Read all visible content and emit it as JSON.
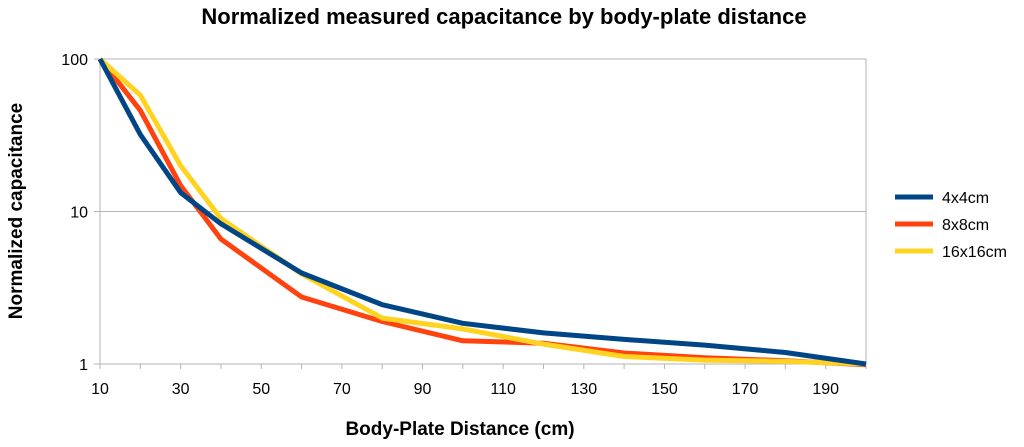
{
  "chart_data": {
    "type": "line",
    "title": "Normalized measured capacitance by body-plate distance",
    "xlabel": "Body-Plate Distance (cm)",
    "ylabel": "Normalized capacitance",
    "xlim": [
      10,
      200
    ],
    "ylim": [
      1,
      100
    ],
    "yscale": "log",
    "x_ticks": [
      10,
      30,
      50,
      70,
      90,
      110,
      130,
      150,
      170,
      190
    ],
    "y_ticks": [
      1,
      10,
      100
    ],
    "grid": "horizontal",
    "legend": "right",
    "series": [
      {
        "name": "4x4cm",
        "color": "#004586",
        "x": [
          10,
          20,
          30,
          40,
          60,
          80,
          100,
          120,
          140,
          160,
          180,
          200
        ],
        "y": [
          100,
          32,
          13.3,
          8.3,
          3.95,
          2.45,
          1.85,
          1.6,
          1.45,
          1.33,
          1.19,
          1.0
        ]
      },
      {
        "name": "8x8cm",
        "color": "#ff420e",
        "x": [
          10,
          20,
          30,
          40,
          60,
          80,
          100,
          120,
          140,
          160,
          180,
          200
        ],
        "y": [
          100,
          46,
          14.8,
          6.6,
          2.75,
          1.9,
          1.42,
          1.37,
          1.18,
          1.1,
          1.05,
          0.99
        ]
      },
      {
        "name": "16x16cm",
        "color": "#ffd320",
        "x": [
          10,
          20,
          30,
          40,
          60,
          80,
          100,
          120,
          140,
          160,
          180,
          200
        ],
        "y": [
          100,
          58,
          20,
          9.0,
          3.9,
          2.0,
          1.7,
          1.35,
          1.12,
          1.06,
          1.04,
          1.0
        ]
      }
    ]
  }
}
